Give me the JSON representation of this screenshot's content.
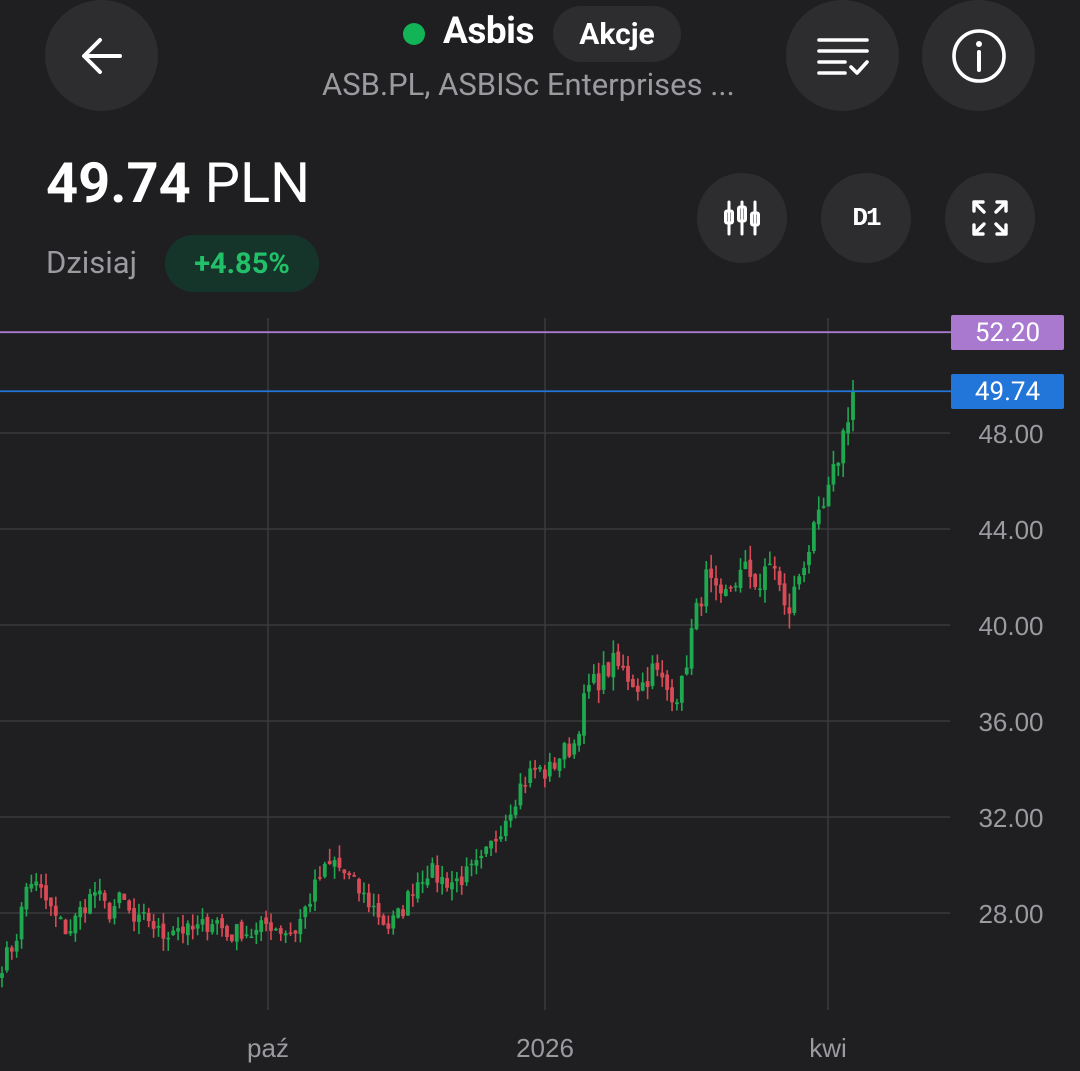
{
  "header": {
    "name": "Asbis",
    "type": "Akcje",
    "subtitle": "ASB.PL, ASBISc Enterprises ...",
    "status_color": "#12b457"
  },
  "quote": {
    "price": "49.74",
    "currency": "PLN",
    "period_label": "Dzisiaj",
    "change": "+4.85%",
    "timeframe": "D1"
  },
  "icons": [
    "back-arrow-icon",
    "watchlist-check-icon",
    "info-icon",
    "candlestick-chart-icon",
    "timeframe-d1",
    "fullscreen-icon"
  ],
  "chart_data": {
    "type": "candlestick",
    "y_ticks": [
      "48.00",
      "44.00",
      "40.00",
      "36.00",
      "32.00",
      "28.00"
    ],
    "x_ticks": [
      "paź",
      "2026",
      "kwi"
    ],
    "ylim": [
      24.2,
      52.8
    ],
    "price_lines": [
      {
        "label": "52.20",
        "value": 52.2,
        "color": "#a879cf"
      },
      {
        "label": "49.74",
        "value": 49.74,
        "color": "#2276d9"
      }
    ],
    "up_color": "#1ea84f",
    "down_color": "#d84a55",
    "close_series_approx": [
      25.9,
      26.8,
      29.5,
      28.8,
      27.8,
      27.2,
      28.2,
      28.9,
      28.0,
      28.6,
      27.5,
      27.8,
      27.0,
      27.5,
      27.2,
      27.4,
      27.8,
      27.0,
      27.3,
      27.1,
      27.6,
      27.3,
      27.2,
      28.4,
      29.6,
      30.1,
      29.5,
      28.8,
      28.2,
      27.4,
      28.0,
      29.2,
      29.8,
      29.4,
      29.3,
      29.6,
      30.0,
      31.0,
      32.2,
      33.3,
      34.0,
      33.8,
      34.6,
      35.0,
      37.3,
      37.8,
      38.4,
      37.9,
      37.4,
      38.2,
      37.3,
      37.1,
      40.1,
      42.0,
      40.8,
      41.8,
      42.3,
      41.6,
      42.8,
      40.2,
      42.2,
      43.7,
      45.1,
      47.3,
      49.74
    ]
  }
}
